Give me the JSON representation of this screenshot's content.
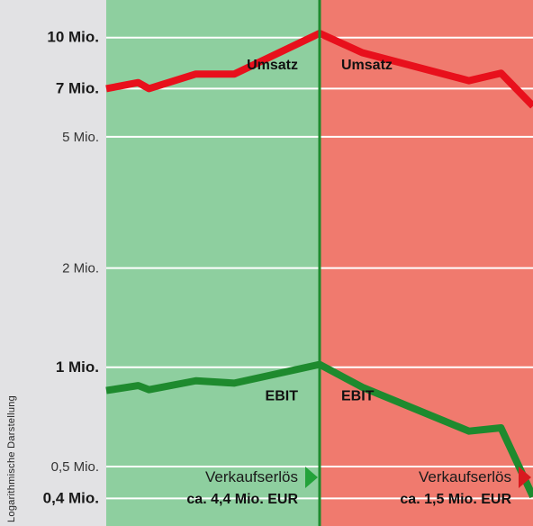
{
  "chart_data": {
    "type": "line",
    "ylabel": "Logarithmische Darstellung",
    "yscale": "log",
    "ylim": [
      330000,
      13000000
    ],
    "y_ticks": [
      {
        "value": 10000000,
        "label": "10 Mio.",
        "bold": true
      },
      {
        "value": 7000000,
        "label": "7 Mio.",
        "bold": true
      },
      {
        "value": 5000000,
        "label": "5 Mio.",
        "bold": false
      },
      {
        "value": 2000000,
        "label": "2 Mio.",
        "bold": false
      },
      {
        "value": 1000000,
        "label": "1 Mio.",
        "bold": true
      },
      {
        "value": 500000,
        "label": "0,5 Mio.",
        "bold": false
      },
      {
        "value": 400000,
        "label": "0,4 Mio.",
        "bold": true
      }
    ],
    "x": [
      0,
      0.15,
      0.2,
      0.42,
      0.6,
      1.0,
      1.2,
      1.7,
      1.85,
      2.0
    ],
    "xlim": [
      0,
      2
    ],
    "series": [
      {
        "name": "Umsatz",
        "color": "#e8101c",
        "values": [
          7000000,
          7300000,
          7000000,
          7750000,
          7750000,
          10300000,
          9000000,
          7400000,
          7800000,
          6200000
        ]
      },
      {
        "name": "EBIT",
        "color": "#1e8a2e",
        "values": [
          850000,
          880000,
          855000,
          910000,
          895000,
          1020000,
          870000,
          640000,
          655000,
          405000
        ]
      }
    ],
    "regions": [
      {
        "x_range": [
          0,
          1
        ],
        "color": "#8ecf9f",
        "annotation": {
          "label": "Verkaufserlös",
          "value": "ca. 4,4 Mio. EUR",
          "marker_color": "#23a23a"
        }
      },
      {
        "x_range": [
          1,
          2
        ],
        "color": "#f07a6e",
        "annotation": {
          "label": "Verkaufserlös",
          "value": "ca. 1,5 Mio. EUR",
          "marker_color": "#d8191f"
        }
      }
    ],
    "divider": {
      "x": 1,
      "color": "#1e8a2e"
    },
    "grid": true,
    "series_labels": [
      {
        "series": "Umsatz",
        "text": "Umsatz",
        "side": "left"
      },
      {
        "series": "Umsatz",
        "text": "Umsatz",
        "side": "right"
      },
      {
        "series": "EBIT",
        "text": "EBIT",
        "side": "left"
      },
      {
        "series": "EBIT",
        "text": "EBIT",
        "side": "right"
      }
    ]
  }
}
